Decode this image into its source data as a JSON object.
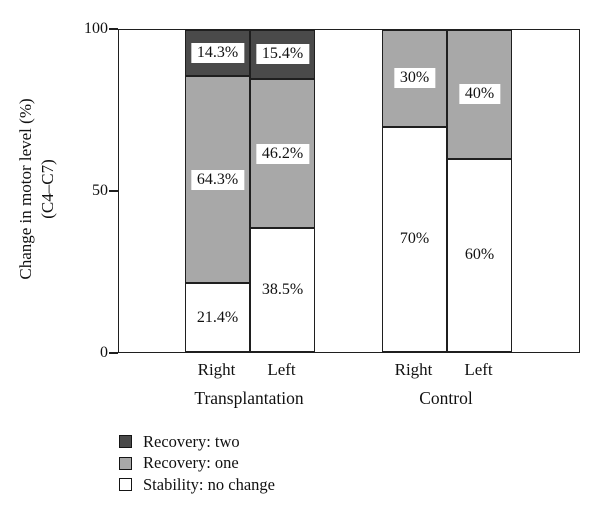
{
  "chart_data": {
    "type": "bar",
    "stacked": true,
    "title": "",
    "ylabel_line1": "Change in motor level (%)",
    "ylabel_line2": "(C4–C7)",
    "ylim": [
      0,
      100
    ],
    "yticks": [
      {
        "value": 0,
        "label": "0"
      },
      {
        "value": 50,
        "label": "50"
      },
      {
        "value": 100,
        "label": "100"
      }
    ],
    "grid": false,
    "series_order_bottom_to_top": [
      "Stability: no change",
      "Recovery: one",
      "Recovery: two"
    ],
    "colors": {
      "Stability: no change": "#ffffff",
      "Recovery: one": "#a8a8a8",
      "Recovery: two": "#4a4a4a"
    },
    "groups": [
      {
        "label": "Transplantation",
        "bars": [
          {
            "label": "Right",
            "segments": [
              {
                "series": "Stability: no change",
                "value": 21.4,
                "text": "21.4%"
              },
              {
                "series": "Recovery: one",
                "value": 64.3,
                "text": "64.3%"
              },
              {
                "series": "Recovery: two",
                "value": 14.3,
                "text": "14.3%"
              }
            ]
          },
          {
            "label": "Left",
            "segments": [
              {
                "series": "Stability: no change",
                "value": 38.5,
                "text": "38.5%"
              },
              {
                "series": "Recovery: one",
                "value": 46.2,
                "text": "46.2%"
              },
              {
                "series": "Recovery: two",
                "value": 15.4,
                "text": "15.4%"
              }
            ]
          }
        ]
      },
      {
        "label": "Control",
        "bars": [
          {
            "label": "Right",
            "segments": [
              {
                "series": "Stability: no change",
                "value": 70,
                "text": "70%"
              },
              {
                "series": "Recovery: one",
                "value": 30,
                "text": "30%"
              }
            ]
          },
          {
            "label": "Left",
            "segments": [
              {
                "series": "Stability: no change",
                "value": 60,
                "text": "60%"
              },
              {
                "series": "Recovery: one",
                "value": 40,
                "text": "40%"
              }
            ]
          }
        ]
      }
    ],
    "legend": [
      {
        "label": "Recovery: two",
        "color": "#4a4a4a"
      },
      {
        "label": "Recovery: one",
        "color": "#a8a8a8"
      },
      {
        "label": "Stability: no change",
        "color": "#ffffff"
      }
    ],
    "legend_position": "bottom-left"
  }
}
